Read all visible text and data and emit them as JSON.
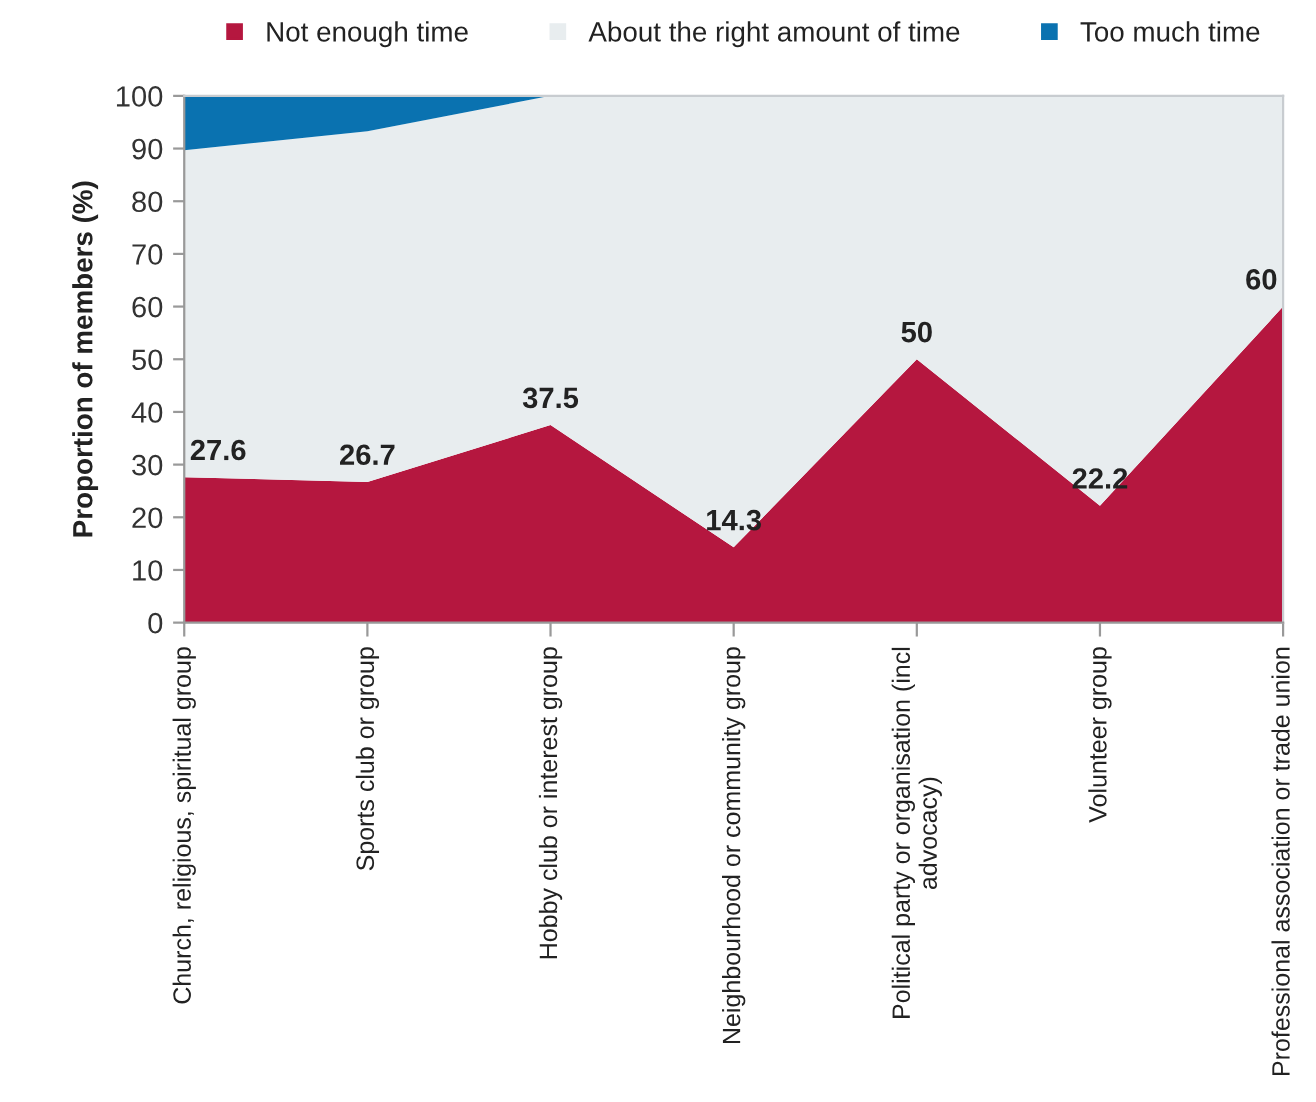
{
  "chart_data": {
    "type": "area",
    "stacked": true,
    "ylabel": "Proportion of members (%)",
    "categories": [
      "Church, religious, spiritual group",
      "Sports club or group",
      "Hobby club or interest group",
      "Neighbourhood or community group",
      "Political party or organisation (incl\nadvocacy)",
      "Volunteer group",
      "Professional association or trade union"
    ],
    "series": [
      {
        "name": "Not enough time",
        "color": "#b5173f",
        "values": [
          27.6,
          26.7,
          37.5,
          14.3,
          50,
          22.2,
          60
        ],
        "value_labels": [
          "27.6",
          "26.7",
          "37.5",
          "14.3",
          "50",
          "22.2",
          "60"
        ]
      },
      {
        "name": "About the right amount of time",
        "color": "#e8edef",
        "values": [
          62.1,
          66.6,
          62.5,
          85.7,
          50,
          77.8,
          40
        ]
      },
      {
        "name": "Too much time",
        "color": "#0a72b0",
        "values": [
          10.3,
          6.7,
          0,
          0,
          0,
          0,
          0
        ]
      }
    ],
    "ylim": [
      0,
      100
    ],
    "yticks": [
      0,
      10,
      20,
      30,
      40,
      50,
      60,
      70,
      80,
      90,
      100
    ],
    "legend": "top"
  }
}
